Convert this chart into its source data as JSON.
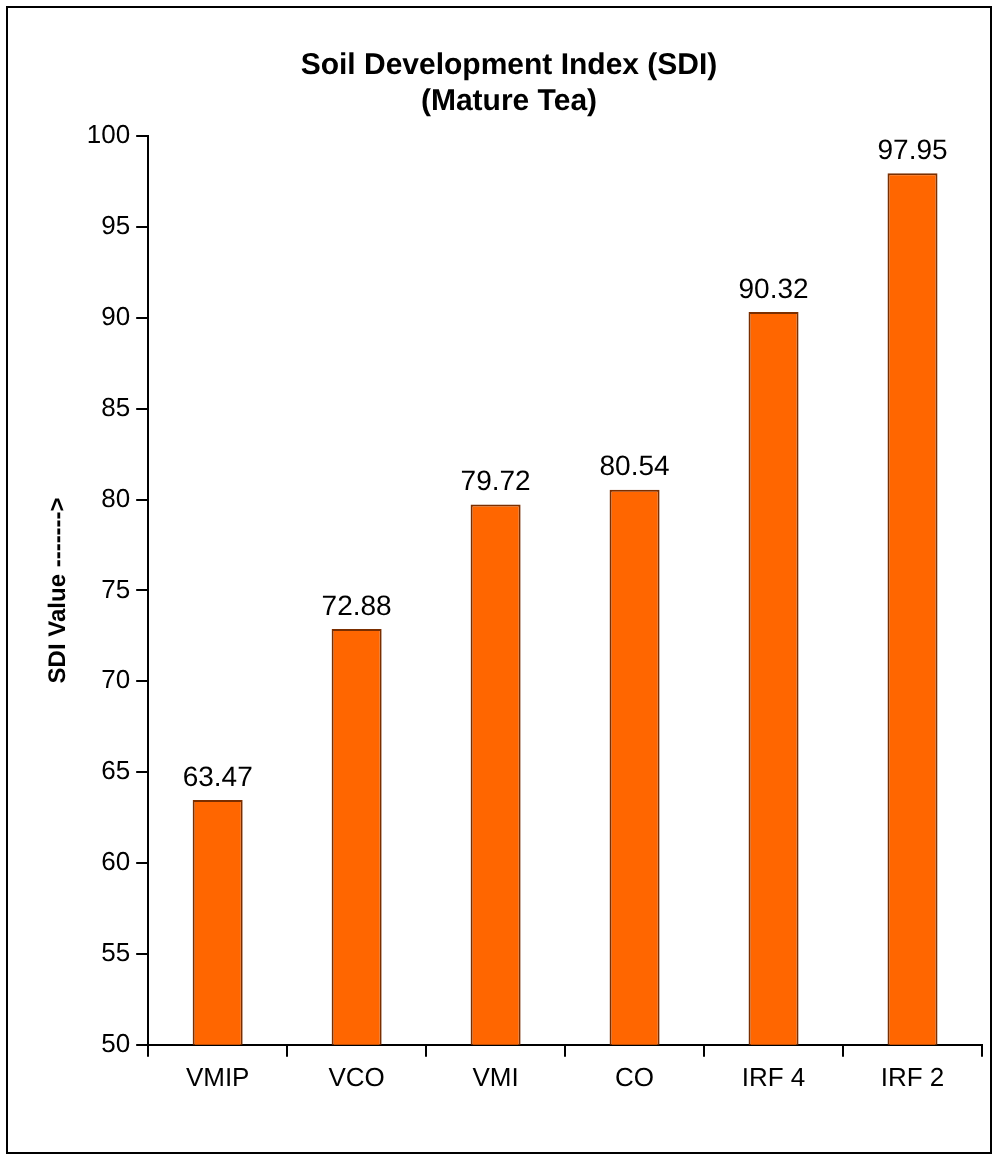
{
  "chart_data": {
    "type": "bar",
    "title": [
      "Soil Development Index (SDI)",
      "(Mature Tea)"
    ],
    "ylabel": "SDI Value ------->",
    "categories": [
      "VMIP",
      "VCO",
      "VMI",
      "CO",
      "IRF 4",
      "IRF 2"
    ],
    "values": [
      63.47,
      72.88,
      79.72,
      80.54,
      90.32,
      97.95
    ],
    "color": "#ff6600",
    "ylim": [
      50,
      100
    ],
    "yticks": [
      50,
      55,
      60,
      65,
      70,
      75,
      80,
      85,
      90,
      95,
      100
    ],
    "grid": false,
    "legend": false,
    "data_labels": true
  }
}
